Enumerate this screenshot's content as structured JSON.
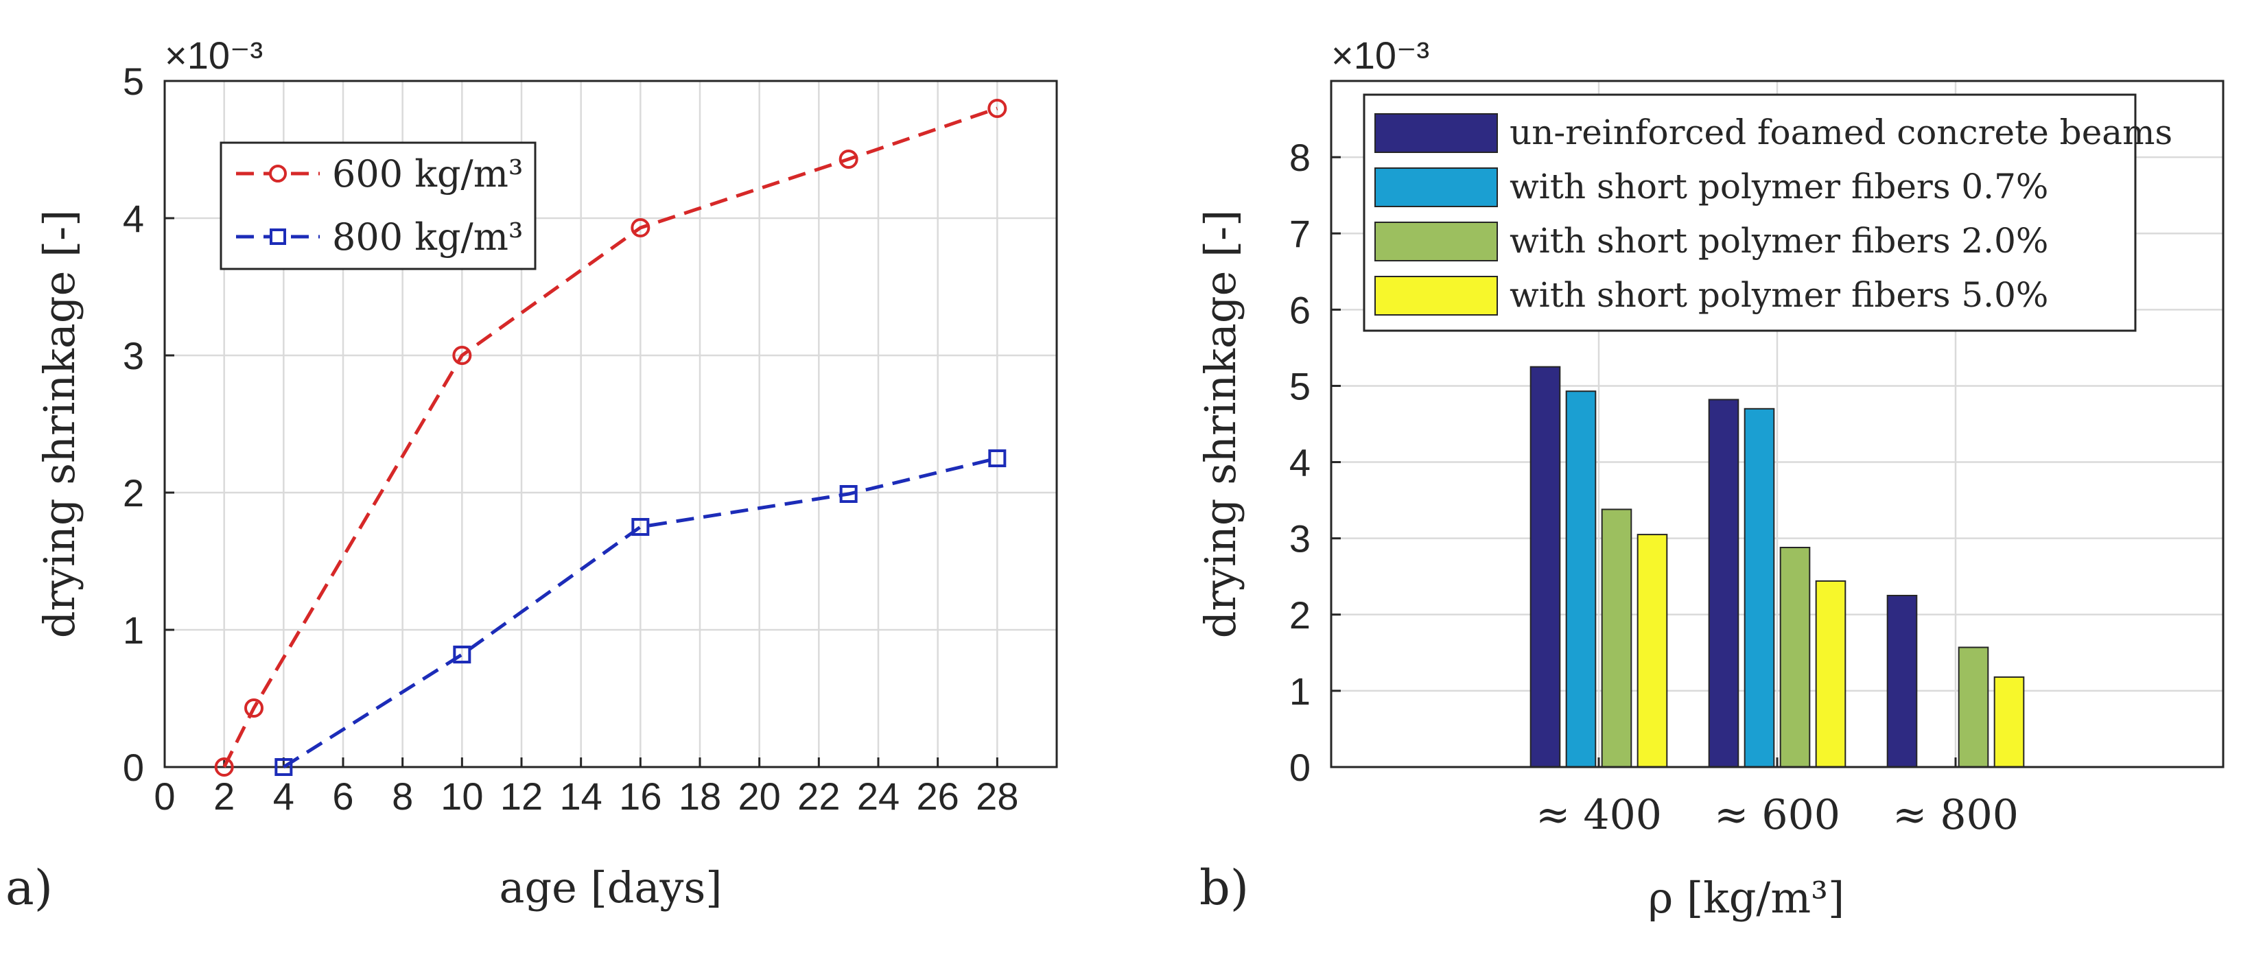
{
  "chart_data": [
    {
      "type": "line",
      "panel_label": "a)",
      "xlabel": "age [days]",
      "ylabel": "drying shrinkage [-]",
      "y_exponent": "×10⁻³",
      "xlim": [
        0,
        30
      ],
      "ylim": [
        0,
        5
      ],
      "xticks": [
        0,
        2,
        4,
        6,
        8,
        10,
        12,
        14,
        16,
        18,
        20,
        22,
        24,
        26,
        28
      ],
      "yticks": [
        0,
        1,
        2,
        3,
        4,
        5
      ],
      "grid": true,
      "legend_position": "top-left",
      "series": [
        {
          "name": "600 kg/m³",
          "color": "#d62828",
          "marker": "circle",
          "linestyle": "dashed",
          "x": [
            2,
            3,
            10,
            16,
            23,
            28
          ],
          "y": [
            0,
            0.43,
            3.0,
            3.93,
            4.43,
            4.8
          ]
        },
        {
          "name": "800 kg/m³",
          "color": "#1c2cb8",
          "marker": "square",
          "linestyle": "dashed",
          "x": [
            4,
            10,
            16,
            23,
            28
          ],
          "y": [
            0,
            0.82,
            1.75,
            1.99,
            2.25
          ]
        }
      ]
    },
    {
      "type": "bar",
      "panel_label": "b)",
      "xlabel": "ρ [kg/m³]",
      "ylabel": "drying shrinkage [-]",
      "y_exponent": "×10⁻³",
      "ylim": [
        0,
        9
      ],
      "yticks": [
        0,
        1,
        2,
        3,
        4,
        5,
        6,
        7,
        8
      ],
      "grid": true,
      "legend_position": "top",
      "categories": [
        "≈ 400",
        "≈ 600",
        "≈ 800"
      ],
      "series": [
        {
          "name": "un-reinforced foamed concrete beams",
          "color": "#2e2a82",
          "values": [
            5.25,
            4.82,
            2.25
          ]
        },
        {
          "name": "with short polymer fibers 0.7%",
          "color": "#1b9fd2",
          "values": [
            4.93,
            4.7,
            null
          ]
        },
        {
          "name": "with short polymer fibers 2.0%",
          "color": "#9cbf5f",
          "values": [
            3.38,
            2.88,
            1.57
          ]
        },
        {
          "name": "with short polymer fibers 5.0%",
          "color": "#f7f72b",
          "values": [
            3.05,
            2.44,
            1.18
          ]
        }
      ]
    }
  ]
}
